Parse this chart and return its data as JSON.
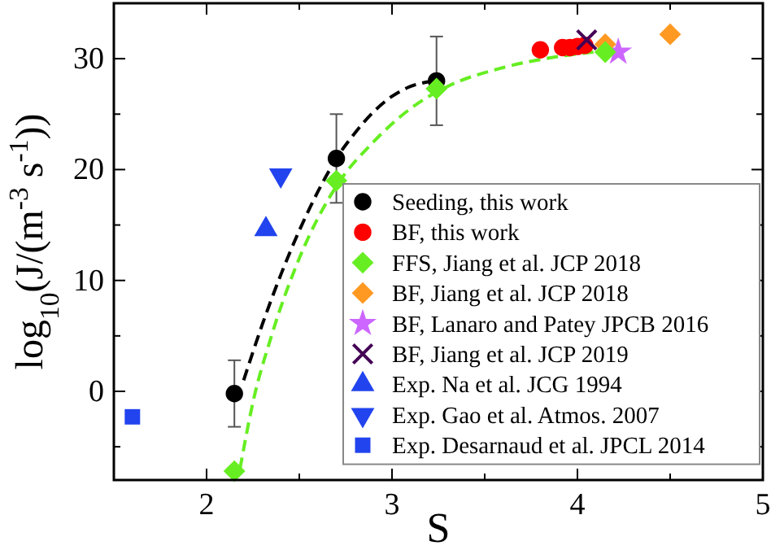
{
  "chart_data": {
    "type": "scatter",
    "xlabel": "S",
    "ylabel": "log$_{10}$(J/(m$^{-3}$ s$^{-1}$))",
    "xlim": [
      1.5,
      5
    ],
    "ylim": [
      -8,
      35
    ],
    "xticks": [
      2,
      {
        "value": 2.5,
        "label": null
      },
      3,
      {
        "value": 3.5,
        "label": null
      },
      4,
      {
        "value": 4.5,
        "label": null
      },
      5
    ],
    "yticks": [
      {
        "value": -5,
        "label": null
      },
      0,
      {
        "value": 5,
        "label": null
      },
      10,
      {
        "value": 15,
        "label": null
      },
      20,
      {
        "value": 25,
        "label": null
      },
      30
    ],
    "grid": false,
    "legend": "bottom right",
    "series": [
      {
        "type": "line",
        "color": "#000000",
        "marker": "none",
        "line_style": "dashed",
        "x": [
          2.2,
          2.3,
          2.4,
          2.5,
          2.6,
          2.7,
          2.8,
          2.9,
          3.0,
          3.1,
          3.24
        ],
        "values": [
          1,
          6,
          10.5,
          14.5,
          18,
          21,
          23.3,
          25.2,
          26.6,
          27.5,
          28
        ]
      },
      {
        "type": "line",
        "color": "#66ee22",
        "marker": "none",
        "line_style": "dashed",
        "x": [
          2.18,
          2.25,
          2.35,
          2.5,
          2.7,
          2.9,
          3.1,
          3.3,
          3.6,
          3.9,
          4.15
        ],
        "values": [
          -7,
          -1,
          5,
          12,
          18.5,
          22.5,
          25.5,
          27.5,
          29.2,
          30.2,
          30.7
        ]
      },
      {
        "name": "Seeding, this work",
        "color": "#000000",
        "marker": "circle",
        "x": [
          2.15,
          2.7,
          3.24
        ],
        "values": [
          -0.2,
          21,
          28
        ],
        "errors": [
          3,
          4,
          4
        ]
      },
      {
        "name": "BF, this work",
        "color": "#ff0000",
        "marker": "circle",
        "x": [
          3.8,
          3.92,
          3.96,
          4.0,
          4.04
        ],
        "values": [
          30.8,
          31,
          31,
          31.1,
          31.2
        ]
      },
      {
        "name": "FFS, Jiang et al. JCP 2018",
        "color": "#66ee22",
        "marker": "diamond",
        "x": [
          2.15,
          2.7,
          3.24,
          4.15
        ],
        "values": [
          -7.2,
          19,
          27.3,
          30.6
        ]
      },
      {
        "name": "BF, Jiang et al. JCP 2018",
        "color": "#ff9922",
        "marker": "diamond",
        "x": [
          4.15,
          4.5
        ],
        "values": [
          31.3,
          32.2
        ]
      },
      {
        "name": "BF, Lanaro and Patey JPCB 2016",
        "color": "#cc66ff",
        "marker": "star",
        "x": [
          4.22
        ],
        "values": [
          30.6
        ]
      },
      {
        "name": "BF, Jiang et al. JCP 2019",
        "color": "#440055",
        "marker": "cross",
        "x": [
          4.05
        ],
        "values": [
          31.7
        ]
      },
      {
        "name": "Exp. Na et al. JCG 1994",
        "color": "#2244ee",
        "marker": "triangle",
        "x": [
          2.32
        ],
        "values": [
          14.6
        ]
      },
      {
        "name": "Exp. Gao et al. Atmos. 2007",
        "color": "#2244ee",
        "marker": "triangle-down",
        "x": [
          2.4
        ],
        "values": [
          19.5
        ]
      },
      {
        "name": "Exp. Desarnaud et al. JPCL 2014",
        "color": "#2244ee",
        "marker": "square",
        "x": [
          1.6
        ],
        "values": [
          -2.3
        ]
      }
    ]
  }
}
